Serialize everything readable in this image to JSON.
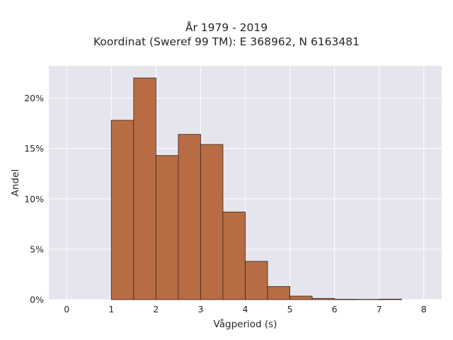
{
  "chart_data": {
    "type": "bar",
    "title_lines": [
      "År 1979 - 2019",
      "Koordinat (Sweref 99 TM): E 368962, N 6163481"
    ],
    "xlabel": "Vågperiod (s)",
    "ylabel": "Andel",
    "xlim": [
      -0.4,
      8.4
    ],
    "ylim": [
      0,
      23.2
    ],
    "x_ticks": [
      0,
      1,
      2,
      3,
      4,
      5,
      6,
      7,
      8
    ],
    "y_ticks": [
      0,
      5,
      10,
      15,
      20
    ],
    "y_tick_suffix": "%",
    "bin_width": 0.5,
    "bins": [
      {
        "start": 1.0,
        "end": 1.5,
        "value": 17.8
      },
      {
        "start": 1.5,
        "end": 2.0,
        "value": 22.0
      },
      {
        "start": 2.0,
        "end": 2.5,
        "value": 14.3
      },
      {
        "start": 2.5,
        "end": 3.0,
        "value": 16.4
      },
      {
        "start": 3.0,
        "end": 3.5,
        "value": 15.4
      },
      {
        "start": 3.5,
        "end": 4.0,
        "value": 8.7
      },
      {
        "start": 4.0,
        "end": 4.5,
        "value": 3.8
      },
      {
        "start": 4.5,
        "end": 5.0,
        "value": 1.3
      },
      {
        "start": 5.0,
        "end": 5.5,
        "value": 0.35
      },
      {
        "start": 5.5,
        "end": 6.0,
        "value": 0.12
      },
      {
        "start": 6.0,
        "end": 6.5,
        "value": 0.04
      },
      {
        "start": 6.5,
        "end": 7.0,
        "value": 0.03
      },
      {
        "start": 7.0,
        "end": 7.5,
        "value": 0.05
      }
    ],
    "grid": true,
    "colors": {
      "bar_fill": "#b86c43",
      "bar_edge": "#3a2418",
      "plot_bg": "#e5e5ee",
      "grid": "#ffffff"
    }
  }
}
